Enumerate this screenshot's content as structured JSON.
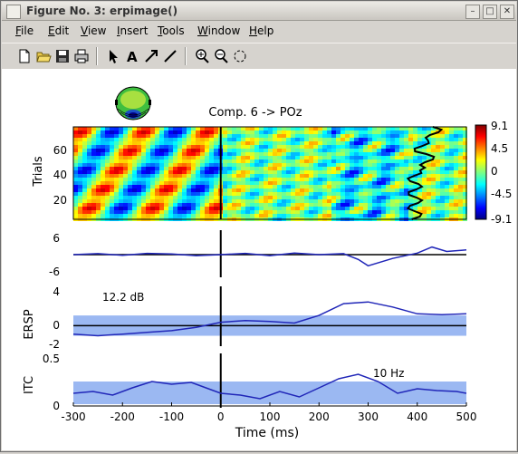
{
  "window": {
    "title": "Figure No. 3:  erpimage()",
    "controls": {
      "minimize": "–",
      "maximize": "□",
      "close": "✕"
    }
  },
  "menu": {
    "items": [
      {
        "label": "File",
        "u": "F",
        "rest": "ile"
      },
      {
        "label": "Edit",
        "u": "E",
        "rest": "dit"
      },
      {
        "label": "View",
        "u": "V",
        "rest": "iew"
      },
      {
        "label": "Insert",
        "u": "I",
        "rest": "nsert"
      },
      {
        "label": "Tools",
        "u": "T",
        "rest": "ools"
      },
      {
        "label": "Window",
        "u": "W",
        "rest": "indow"
      },
      {
        "label": "Help",
        "u": "H",
        "rest": "elp"
      }
    ]
  },
  "toolbar": {
    "icons": [
      "new-file-icon",
      "open-folder-icon",
      "save-icon",
      "print-icon",
      "select-arrow-icon",
      "text-icon",
      "arrow-icon",
      "line-icon",
      "zoom-in-icon",
      "zoom-out-icon",
      "rotate-icon"
    ]
  },
  "figure": {
    "component_title": "Comp. 6 -> POz",
    "colorbar_ticks": [
      "9.1",
      "4.5",
      "0",
      "-4.5",
      "-9.1"
    ],
    "image_ylabel": "Trials",
    "image_yticks": [
      "60",
      "40",
      "20"
    ],
    "erp_yticks": [
      "6",
      "-6"
    ],
    "ersp_label": "ERSP",
    "ersp_yticks": [
      "4",
      "0",
      "-2"
    ],
    "ersp_note": "12.2 dB",
    "itc_label": "ITC",
    "itc_yticks": [
      "0.5",
      "0"
    ],
    "itc_note": "10 Hz",
    "xticks": [
      "-300",
      "-200",
      "-100",
      "0",
      "100",
      "200",
      "300",
      "400",
      "500"
    ],
    "xlabel": "Time (ms)",
    "colors": {
      "line": "#2026b8",
      "band": "#9bb8f2",
      "bg": "#ffffff"
    }
  },
  "chart_data": [
    {
      "type": "heatmap",
      "title": "Comp. 6 -> POz",
      "ylabel": "Trials",
      "x_range": [
        -300,
        500
      ],
      "y_range": [
        1,
        80
      ],
      "color_range": [
        -9.1,
        9.1
      ],
      "colormap": "jet"
    },
    {
      "type": "line",
      "name": "ERP",
      "ylim": [
        -6,
        6
      ],
      "x": [
        -300,
        -250,
        -200,
        -150,
        -100,
        -50,
        0,
        50,
        100,
        150,
        200,
        250,
        280,
        300,
        350,
        400,
        430,
        460,
        500
      ],
      "y": [
        0,
        0.3,
        -0.2,
        0.4,
        0.2,
        -0.3,
        0,
        0.4,
        -0.3,
        0.5,
        0,
        0.3,
        -1.5,
        -3.5,
        -1.2,
        0.5,
        2.4,
        1.0,
        1.5
      ]
    },
    {
      "type": "line",
      "name": "ERSP",
      "ylabel": "ERSP",
      "annotation": "12.2 dB",
      "ylim": [
        -2,
        4
      ],
      "x": [
        -300,
        -250,
        -200,
        -150,
        -100,
        -50,
        0,
        50,
        100,
        150,
        200,
        250,
        300,
        350,
        400,
        450,
        500
      ],
      "y": [
        -1.0,
        -1.2,
        -1.0,
        -0.8,
        -0.6,
        -0.2,
        0.4,
        0.6,
        0.5,
        0.3,
        1.2,
        2.6,
        2.8,
        2.2,
        1.4,
        1.3,
        1.4
      ]
    },
    {
      "type": "line",
      "name": "ITC",
      "ylabel": "ITC",
      "annotation": "10 Hz",
      "ylim": [
        0,
        0.5
      ],
      "x": [
        -300,
        -260,
        -220,
        -180,
        -140,
        -100,
        -60,
        -20,
        0,
        40,
        80,
        120,
        160,
        200,
        240,
        280,
        320,
        360,
        400,
        440,
        480,
        500
      ],
      "y": [
        0.12,
        0.14,
        0.1,
        0.18,
        0.25,
        0.22,
        0.24,
        0.16,
        0.12,
        0.1,
        0.06,
        0.14,
        0.08,
        0.18,
        0.28,
        0.33,
        0.25,
        0.12,
        0.17,
        0.15,
        0.14,
        0.12
      ],
      "xlabel": "Time (ms)"
    }
  ]
}
